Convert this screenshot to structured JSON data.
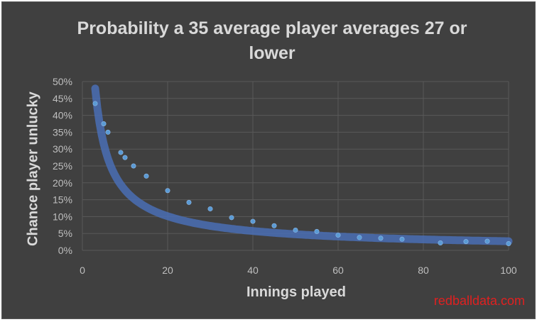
{
  "chart_data": {
    "type": "scatter",
    "title": "Probability a 35 average player averages 27 or\nlower",
    "xlabel": "Innings played",
    "ylabel": "Chance player unlucky",
    "xlim": [
      0,
      100
    ],
    "ylim": [
      0,
      0.5
    ],
    "x_ticks": [
      0,
      20,
      40,
      60,
      80,
      100
    ],
    "x_tick_labels": [
      "0",
      "20",
      "40",
      "60",
      "80",
      "100"
    ],
    "y_ticks": [
      0,
      0.05,
      0.1,
      0.15,
      0.2,
      0.25,
      0.3,
      0.35,
      0.4,
      0.45,
      0.5
    ],
    "y_tick_labels": [
      "0%",
      "5%",
      "10%",
      "15%",
      "20%",
      "25%",
      "30%",
      "35%",
      "40%",
      "45%",
      "50%"
    ],
    "grid": true,
    "trendline": true,
    "series": [
      {
        "x": [
          3,
          5,
          6,
          9,
          10,
          12,
          15,
          20,
          25,
          30,
          35,
          40,
          45,
          50,
          55,
          60,
          65,
          70,
          75,
          84,
          90,
          95,
          100
        ],
        "y": [
          0.435,
          0.375,
          0.35,
          0.29,
          0.275,
          0.25,
          0.22,
          0.177,
          0.142,
          0.123,
          0.097,
          0.086,
          0.073,
          0.06,
          0.056,
          0.045,
          0.038,
          0.036,
          0.033,
          0.022,
          0.026,
          0.027,
          0.02
        ]
      }
    ],
    "colors": {
      "background": "#404040",
      "gridline": "#595959",
      "trend": "#4a6fb5",
      "marker": "#5b9bd5",
      "text": "#d9d9d9",
      "tick_text": "#bfbfbf"
    }
  },
  "watermark": "redballdata.com"
}
